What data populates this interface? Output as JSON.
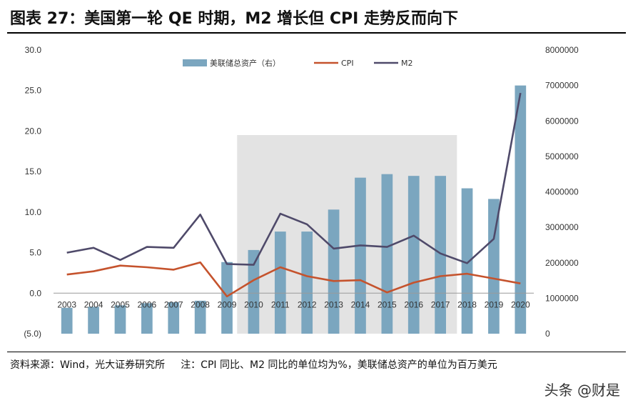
{
  "title": "图表  27：美国第一轮 QE 时期，M2 增长但 CPI 走势反而向下",
  "footnote": {
    "source": "资料来源：Wind，光大证券研究所",
    "note": "注：CPI 同比、M2 同比的单位均为%，美联储总资产的单位为百万美元"
  },
  "watermark": "头条 @财是",
  "chart_data": {
    "type": "bar+line",
    "categories": [
      "2003",
      "2004",
      "2005",
      "2006",
      "2007",
      "2008",
      "2009",
      "2010",
      "2011",
      "2012",
      "2013",
      "2014",
      "2015",
      "2016",
      "2017",
      "2018",
      "2019",
      "2020"
    ],
    "left_axis": {
      "range": [
        -5,
        30
      ],
      "ticks": [
        "30.0",
        "25.0",
        "20.0",
        "15.0",
        "10.0",
        "5.0",
        "0.0",
        "(5.0)"
      ],
      "tick_values": [
        30,
        25,
        20,
        15,
        10,
        5,
        0,
        -5
      ],
      "negative_color": "#c00000"
    },
    "right_axis": {
      "range": [
        0,
        8000000
      ],
      "ticks": [
        "8000000",
        "7000000",
        "6000000",
        "5000000",
        "4000000",
        "3000000",
        "2000000",
        "1000000",
        "0"
      ],
      "tick_values": [
        8000000,
        7000000,
        6000000,
        5000000,
        4000000,
        3000000,
        2000000,
        1000000,
        0
      ]
    },
    "series": [
      {
        "name": "美联储总资产（右）",
        "kind": "bar",
        "axis": "right",
        "color": "#7ba6bf",
        "values": [
          730000,
          760000,
          800000,
          860000,
          890000,
          930000,
          2020000,
          2360000,
          2880000,
          2880000,
          3500000,
          4400000,
          4500000,
          4450000,
          4450000,
          4100000,
          3800000,
          7000000
        ]
      },
      {
        "name": "CPI",
        "kind": "line",
        "axis": "left",
        "color": "#c5532d",
        "values": [
          2.3,
          2.7,
          3.4,
          3.2,
          2.9,
          3.8,
          -0.4,
          1.6,
          3.2,
          2.1,
          1.5,
          1.6,
          0.1,
          1.3,
          2.1,
          2.4,
          1.8,
          1.2
        ]
      },
      {
        "name": "M2",
        "kind": "line",
        "axis": "left",
        "color": "#4f4a6a",
        "values": [
          5.0,
          5.6,
          4.1,
          5.7,
          5.6,
          9.7,
          3.6,
          3.5,
          9.8,
          8.5,
          5.5,
          5.9,
          5.7,
          7.1,
          4.9,
          3.7,
          6.7,
          24.7
        ]
      }
    ],
    "highlight": {
      "from": "2010",
      "to": "2017",
      "color": "#e3e3e3"
    }
  }
}
